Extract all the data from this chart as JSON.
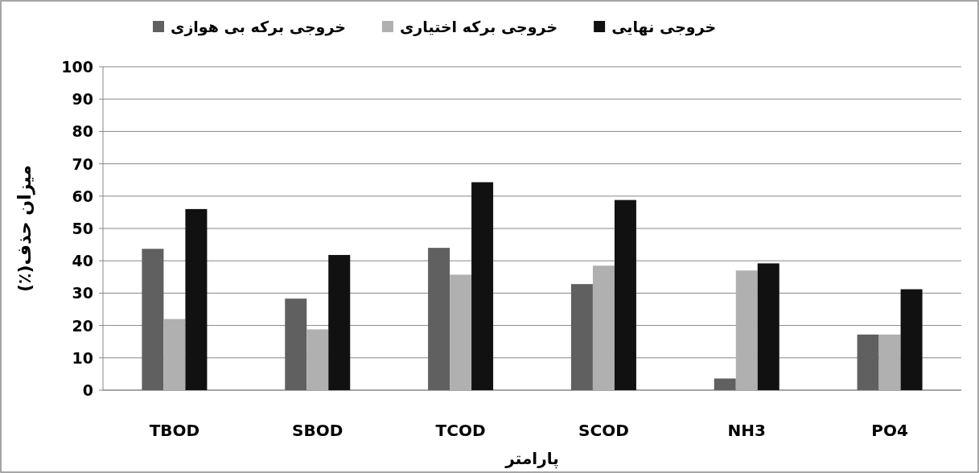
{
  "chart_data": {
    "type": "bar",
    "xlabel": "پارامتر",
    "ylabel": "میزان حذف(٪)",
    "categories": [
      "TBOD",
      "SBOD",
      "TCOD",
      "SCOD",
      "NH3",
      "PO4"
    ],
    "series": [
      {
        "name": "خروجی برکه بی هوازی",
        "color": "#606060",
        "values": [
          43.7,
          28.3,
          44,
          32.8,
          3.6,
          17.2
        ]
      },
      {
        "name": "خروجی برکه اختیاری",
        "color": "#b0b0b0",
        "values": [
          22,
          18.8,
          35.7,
          38.5,
          37,
          17.2
        ]
      },
      {
        "name": "خروجی نهایی",
        "color": "#111111",
        "values": [
          56,
          41.8,
          64.3,
          58.8,
          39.2,
          31.2
        ]
      }
    ],
    "ylim": [
      0,
      100
    ],
    "yticks": [
      0,
      10,
      20,
      30,
      40,
      50,
      60,
      70,
      80,
      90,
      100
    ],
    "grid": "y",
    "legend": "top"
  }
}
